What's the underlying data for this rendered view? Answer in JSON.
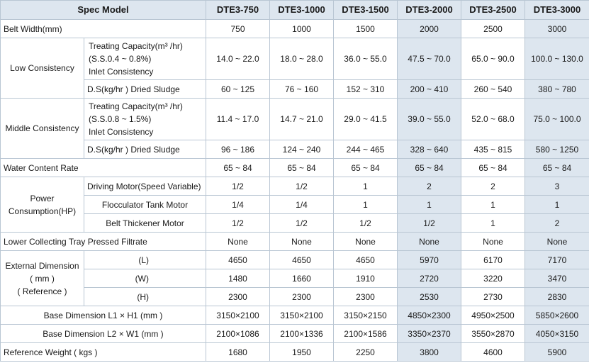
{
  "header": {
    "spec_label": "Spec Model",
    "models": [
      "DTE3-750",
      "DTE3-1000",
      "DTE3-1500",
      "DTE3-2000",
      "DTE3-2500",
      "DTE3-3000"
    ]
  },
  "belt_width": {
    "label": "Belt Width(mm)",
    "values": [
      "750",
      "1000",
      "1500",
      "2000",
      "2500",
      "3000"
    ]
  },
  "low": {
    "group": "Low Consistency",
    "cap_lines": [
      "Treating Capacity(m³ /hr)",
      "(S.S.0.4 ~ 0.8%)",
      "Inlet Consistency"
    ],
    "cap_values": [
      "14.0 ~ 22.0",
      "18.0 ~ 28.0",
      "36.0 ~ 55.0",
      "47.5 ~ 70.0",
      "65.0 ~ 90.0",
      "100.0 ~ 130.0"
    ],
    "ds_label": "D.S(kg/hr ) Dried Sludge",
    "ds_values": [
      "60 ~ 125",
      "76 ~ 160",
      "152 ~ 310",
      "200 ~ 410",
      "260 ~ 540",
      "380 ~ 780"
    ]
  },
  "middle": {
    "group": "Middle Consistency",
    "cap_lines": [
      "Treating Capacity(m³ /hr)",
      "(S.S.0.8 ~ 1.5%)",
      "Inlet Consistency"
    ],
    "cap_values": [
      "11.4 ~ 17.0",
      "14.7 ~ 21.0",
      "29.0 ~ 41.5",
      "39.0 ~ 55.0",
      "52.0 ~ 68.0",
      "75.0 ~ 100.0"
    ],
    "ds_label": "D.S(kg/hr ) Dried Sludge",
    "ds_values": [
      "96 ~ 186",
      "124 ~ 240",
      "244 ~ 465",
      "328 ~ 640",
      "435 ~ 815",
      "580 ~ 1250"
    ]
  },
  "water": {
    "label": "Water Content Rate",
    "values": [
      "65 ~ 84",
      "65 ~ 84",
      "65 ~ 84",
      "65 ~ 84",
      "65 ~ 84",
      "65 ~ 84"
    ]
  },
  "power": {
    "group_line1": "Power",
    "group_line2": "Consumption(HP)",
    "rows": [
      {
        "label": "Driving Motor(Speed Variable)",
        "values": [
          "1/2",
          "1/2",
          "1",
          "2",
          "2",
          "3"
        ]
      },
      {
        "label": "Flocculator Tank Motor",
        "values": [
          "1/4",
          "1/4",
          "1",
          "1",
          "1",
          "1"
        ]
      },
      {
        "label": "Belt Thickener Motor",
        "values": [
          "1/2",
          "1/2",
          "1/2",
          "1/2",
          "1",
          "2"
        ]
      }
    ]
  },
  "tray": {
    "label": "Lower Collecting Tray Pressed Filtrate",
    "values": [
      "None",
      "None",
      "None",
      "None",
      "None",
      "None"
    ]
  },
  "external": {
    "group_lines": [
      "External Dimension",
      "( mm )",
      "( Reference )"
    ],
    "rows": [
      {
        "label": "(L)",
        "values": [
          "4650",
          "4650",
          "4650",
          "5970",
          "6170",
          "7170"
        ]
      },
      {
        "label": "(W)",
        "values": [
          "1480",
          "1660",
          "1910",
          "2720",
          "3220",
          "3470"
        ]
      },
      {
        "label": "(H)",
        "values": [
          "2300",
          "2300",
          "2300",
          "2530",
          "2730",
          "2830"
        ]
      }
    ]
  },
  "base1": {
    "label": "Base Dimension L1 × H1 (mm )",
    "values": [
      "3150×2100",
      "3150×2100",
      "3150×2150",
      "4850×2300",
      "4950×2500",
      "5850×2600"
    ]
  },
  "base2": {
    "label": "Base Dimension L2 × W1 (mm )",
    "values": [
      "2100×1086",
      "2100×1336",
      "2100×1586",
      "3350×2370",
      "3550×2870",
      "4050×3150"
    ]
  },
  "weight": {
    "label": "Reference Weight ( kgs )",
    "values": [
      "1680",
      "1950",
      "2250",
      "3800",
      "4600",
      "5900"
    ]
  },
  "colors": {
    "header_shade": "#dde6ef",
    "border": "#b9c6d3"
  }
}
